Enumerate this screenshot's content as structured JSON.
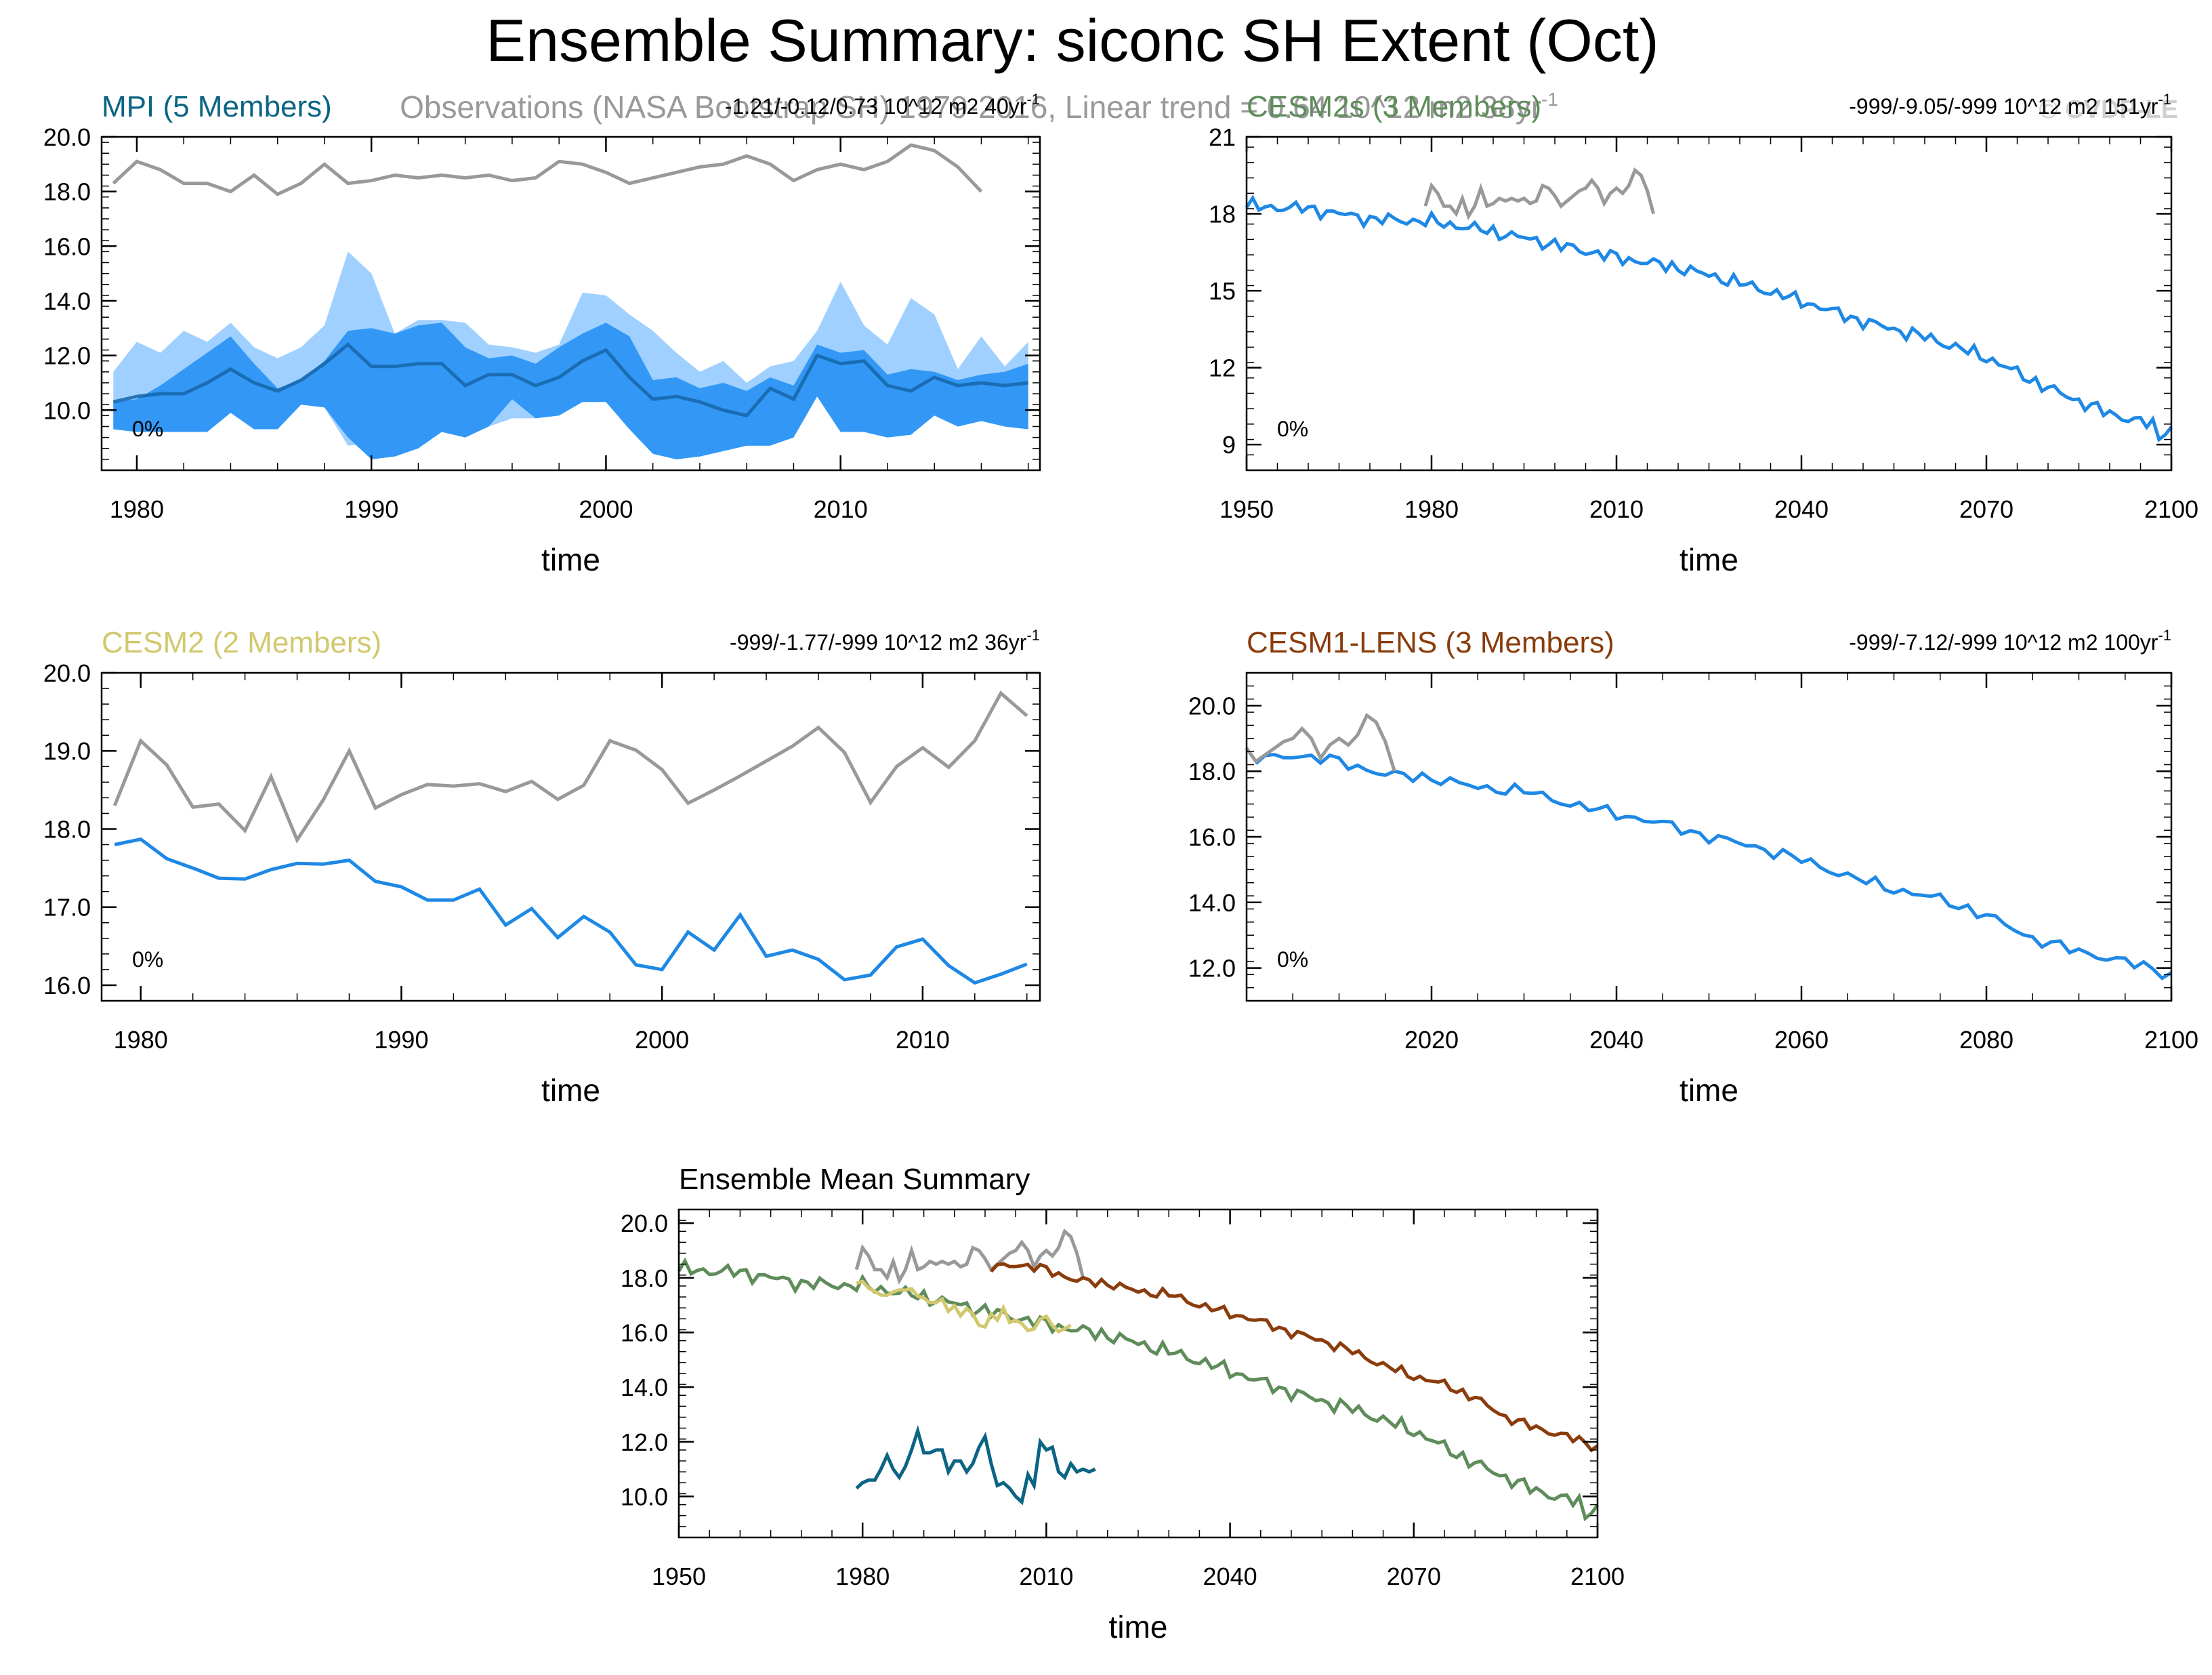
{
  "figure": {
    "title": "Ensemble Summary: siconc SH Extent (Oct)",
    "subtitle": "Observations (NASA Bootstrap SH) 1979-2016, Linear trend = 0.64 10^12 m2 38yr",
    "subtitle_sup": "-1",
    "watermark": "© CVDP-LE"
  },
  "colors": {
    "obs": "#999999",
    "mpi": "#0b6483",
    "cesm2s": "#5e8c5a",
    "cesm2": "#d2c86e",
    "lens": "#8a3c0c",
    "blue_line": "#1e88e5",
    "band_outer": "#9fd0ff",
    "band_inner": "#3398f5",
    "axis": "#000000"
  },
  "chart_data": [
    {
      "id": "mpi",
      "type": "area",
      "title": "MPI (5 Members)",
      "trend_label": "-1.21/-0.12/0.73 10^12 m2 40yr",
      "trend_sup": "-1",
      "pct_label": "0%",
      "xlabel": "time",
      "xlim": [
        1978.5,
        2018.5
      ],
      "ylim": [
        7.8,
        20.0
      ],
      "xticks": [
        1980,
        1990,
        2000,
        2010
      ],
      "yticks": [
        10.0,
        12.0,
        14.0,
        16.0,
        18.0,
        20.0
      ],
      "ytick_labels": [
        "10.0",
        "12.0",
        "14.0",
        "16.0",
        "18.0",
        "20.0"
      ],
      "years": [
        1979,
        1980,
        1981,
        1982,
        1983,
        1984,
        1985,
        1986,
        1987,
        1988,
        1989,
        1990,
        1991,
        1992,
        1993,
        1994,
        1995,
        1996,
        1997,
        1998,
        1999,
        2000,
        2001,
        2002,
        2003,
        2004,
        2005,
        2006,
        2007,
        2008,
        2009,
        2010,
        2011,
        2012,
        2013,
        2014,
        2015,
        2016,
        2017,
        2018
      ],
      "max": [
        11.4,
        12.5,
        12.1,
        12.9,
        12.5,
        13.2,
        12.3,
        11.9,
        12.3,
        13.1,
        15.8,
        15.0,
        12.8,
        13.3,
        13.3,
        13.2,
        12.4,
        12.3,
        12.1,
        12.4,
        14.3,
        14.2,
        13.5,
        12.9,
        12.1,
        11.4,
        11.8,
        11.0,
        11.6,
        11.8,
        12.9,
        14.7,
        13.1,
        12.4,
        14.1,
        13.5,
        11.5,
        12.7,
        11.6,
        12.5
      ],
      "upper": [
        10.3,
        10.4,
        10.9,
        11.5,
        12.1,
        12.7,
        11.7,
        10.8,
        11.1,
        11.8,
        12.9,
        13.0,
        12.8,
        13.1,
        13.2,
        12.3,
        11.9,
        12.0,
        11.7,
        12.3,
        12.8,
        13.2,
        12.7,
        11.1,
        11.2,
        10.8,
        11.0,
        10.7,
        11.2,
        10.9,
        12.4,
        12.1,
        12.2,
        11.3,
        11.5,
        11.4,
        11.1,
        11.3,
        11.4,
        11.7
      ],
      "mean": [
        10.3,
        10.5,
        10.6,
        10.6,
        11.0,
        11.5,
        11.0,
        10.7,
        11.1,
        11.7,
        12.4,
        11.6,
        11.6,
        11.7,
        11.7,
        10.9,
        11.3,
        11.3,
        10.9,
        11.2,
        11.8,
        12.2,
        11.2,
        10.4,
        10.5,
        10.3,
        10.0,
        9.8,
        10.8,
        10.4,
        12.0,
        11.7,
        11.8,
        10.9,
        10.7,
        11.2,
        10.9,
        11.0,
        10.9,
        11.0
      ],
      "lower": [
        9.3,
        9.2,
        9.2,
        9.2,
        9.2,
        9.9,
        9.3,
        9.3,
        10.2,
        10.1,
        9.0,
        8.2,
        8.3,
        8.6,
        9.2,
        9.0,
        9.4,
        10.4,
        9.7,
        9.8,
        10.3,
        10.3,
        9.3,
        8.4,
        8.2,
        8.3,
        8.5,
        8.7,
        8.7,
        9.0,
        10.5,
        9.2,
        9.2,
        9.0,
        9.1,
        9.8,
        9.4,
        9.6,
        9.4,
        9.3
      ],
      "min": [
        9.3,
        9.2,
        9.2,
        9.2,
        9.2,
        9.9,
        9.3,
        9.3,
        10.2,
        10.1,
        8.7,
        8.8,
        9.0,
        9.2,
        9.2,
        9.0,
        9.4,
        9.7,
        9.7,
        9.8,
        10.3,
        10.3,
        9.3,
        8.4,
        8.2,
        8.3,
        8.5,
        8.7,
        8.7,
        9.0,
        10.5,
        9.2,
        9.2,
        9.0,
        9.1,
        9.8,
        9.4,
        9.6,
        9.4,
        9.3
      ],
      "obs_years": [
        1979,
        1980,
        1981,
        1982,
        1983,
        1984,
        1985,
        1986,
        1987,
        1988,
        1989,
        1990,
        1991,
        1992,
        1993,
        1994,
        1995,
        1996,
        1997,
        1998,
        1999,
        2000,
        2001,
        2002,
        2003,
        2004,
        2005,
        2006,
        2007,
        2008,
        2009,
        2010,
        2011,
        2012,
        2013,
        2014,
        2015,
        2016
      ],
      "obs": [
        18.3,
        19.1,
        18.8,
        18.3,
        18.3,
        18.0,
        18.6,
        17.9,
        18.3,
        19.0,
        18.3,
        18.4,
        18.6,
        18.5,
        18.6,
        18.5,
        18.6,
        18.4,
        18.5,
        19.1,
        19.0,
        18.7,
        18.3,
        18.5,
        18.7,
        18.9,
        19.0,
        19.3,
        19.0,
        18.4,
        18.8,
        19.0,
        18.8,
        19.1,
        19.7,
        19.5,
        18.9,
        18.0
      ]
    },
    {
      "id": "cesm2s",
      "type": "line",
      "title": "CESM2s (3 Members)",
      "trend_label": "-999/-9.05/-999 10^12 m2 151yr",
      "trend_sup": "-1",
      "pct_label": "0%",
      "xlabel": "time",
      "xlim": [
        1950,
        2100
      ],
      "ylim": [
        8,
        21
      ],
      "xticks": [
        1950,
        1980,
        2010,
        2040,
        2070,
        2100
      ],
      "yticks": [
        9,
        12,
        15,
        18,
        21
      ],
      "ytick_labels": [
        "9",
        "12",
        "15",
        "18",
        "21"
      ],
      "series_start": 1950,
      "anchors": [
        [
          1950,
          18.3
        ],
        [
          1960,
          18.2
        ],
        [
          1970,
          17.8
        ],
        [
          1980,
          17.7
        ],
        [
          1990,
          17.3
        ],
        [
          2000,
          16.8
        ],
        [
          2010,
          16.3
        ],
        [
          2020,
          15.9
        ],
        [
          2030,
          15.3
        ],
        [
          2040,
          14.6
        ],
        [
          2050,
          13.8
        ],
        [
          2060,
          13.2
        ],
        [
          2070,
          12.4
        ],
        [
          2080,
          11.2
        ],
        [
          2090,
          10.2
        ],
        [
          2100,
          9.6
        ]
      ],
      "noise": 0.22,
      "dip": [
        2098,
        9.2
      ],
      "obs_years": [
        1979,
        1980,
        1981,
        1982,
        1983,
        1984,
        1985,
        1986,
        1987,
        1988,
        1989,
        1990,
        1991,
        1992,
        1993,
        1994,
        1995,
        1996,
        1997,
        1998,
        1999,
        2000,
        2001,
        2002,
        2003,
        2004,
        2005,
        2006,
        2007,
        2008,
        2009,
        2010,
        2011,
        2012,
        2013,
        2014,
        2015,
        2016
      ],
      "obs": [
        18.3,
        19.1,
        18.8,
        18.3,
        18.3,
        18.0,
        18.6,
        17.9,
        18.3,
        19.0,
        18.3,
        18.4,
        18.6,
        18.5,
        18.6,
        18.5,
        18.6,
        18.4,
        18.5,
        19.1,
        19.0,
        18.7,
        18.3,
        18.5,
        18.7,
        18.9,
        19.0,
        19.3,
        19.0,
        18.4,
        18.8,
        19.0,
        18.8,
        19.1,
        19.7,
        19.5,
        18.9,
        18.0
      ]
    },
    {
      "id": "cesm2",
      "type": "line",
      "title": "CESM2 (2 Members)",
      "trend_label": "-999/-1.77/-999 10^12 m2 36yr",
      "trend_sup": "-1",
      "pct_label": "0%",
      "xlabel": "time",
      "xlim": [
        1978.5,
        2014.5
      ],
      "ylim": [
        15.8,
        20.0
      ],
      "xticks": [
        1980,
        1990,
        2000,
        2010
      ],
      "yticks": [
        16.0,
        17.0,
        18.0,
        19.0,
        20.0
      ],
      "ytick_labels": [
        "16.0",
        "17.0",
        "18.0",
        "19.0",
        "20.0"
      ],
      "years": [
        1979,
        1980,
        1981,
        1982,
        1983,
        1984,
        1985,
        1986,
        1987,
        1988,
        1989,
        1990,
        1991,
        1992,
        1993,
        1994,
        1995,
        1996,
        1997,
        1998,
        1999,
        2000,
        2001,
        2002,
        2003,
        2004,
        2005,
        2006,
        2007,
        2008,
        2009,
        2010,
        2011,
        2012,
        2013,
        2014
      ],
      "values": [
        17.8,
        17.87,
        17.62,
        17.5,
        17.37,
        17.36,
        17.48,
        17.56,
        17.55,
        17.6,
        17.33,
        17.26,
        17.09,
        17.09,
        17.23,
        16.77,
        16.98,
        16.61,
        16.88,
        16.68,
        16.26,
        16.2,
        16.68,
        16.45,
        16.9,
        16.37,
        16.45,
        16.33,
        16.07,
        16.13,
        16.49,
        16.59,
        16.25,
        16.03,
        16.14,
        16.27
      ],
      "obs_years": [
        1979,
        1980,
        1981,
        1982,
        1983,
        1984,
        1985,
        1986,
        1987,
        1988,
        1989,
        1990,
        1991,
        1992,
        1993,
        1994,
        1995,
        1996,
        1997,
        1998,
        1999,
        2000,
        2001,
        2002,
        2003,
        2004,
        2005,
        2006,
        2007,
        2008,
        2009,
        2010,
        2011,
        2012,
        2013,
        2014
      ],
      "obs": [
        18.3,
        19.13,
        18.82,
        18.28,
        18.32,
        17.98,
        18.67,
        17.86,
        18.37,
        19.0,
        18.27,
        18.44,
        18.57,
        18.55,
        18.58,
        18.48,
        18.61,
        18.38,
        18.56,
        19.13,
        19.01,
        18.76,
        18.33,
        18.5,
        18.68,
        18.87,
        19.06,
        19.3,
        18.98,
        18.34,
        18.8,
        19.04,
        18.79,
        19.13,
        19.74,
        19.45
      ]
    },
    {
      "id": "lens",
      "type": "line",
      "title": "CESM1-LENS (3 Members)",
      "trend_label": "-999/-7.12/-999 10^12 m2 100yr",
      "trend_sup": "-1",
      "pct_label": "0%",
      "xlabel": "time",
      "xlim": [
        2000,
        2100
      ],
      "ylim": [
        11.0,
        21.0
      ],
      "xticks": [
        2020,
        2040,
        2060,
        2080,
        2100
      ],
      "yticks": [
        12.0,
        14.0,
        16.0,
        18.0,
        20.0
      ],
      "ytick_labels": [
        "12.0",
        "14.0",
        "16.0",
        "18.0",
        "20.0"
      ],
      "series_start": 2001,
      "anchors": [
        [
          2001,
          18.35
        ],
        [
          2005,
          18.5
        ],
        [
          2010,
          18.3
        ],
        [
          2015,
          17.9
        ],
        [
          2020,
          17.8
        ],
        [
          2025,
          17.5
        ],
        [
          2030,
          17.4
        ],
        [
          2035,
          17.0
        ],
        [
          2040,
          16.7
        ],
        [
          2045,
          16.4
        ],
        [
          2050,
          16.0
        ],
        [
          2055,
          15.7
        ],
        [
          2060,
          15.3
        ],
        [
          2065,
          14.8
        ],
        [
          2070,
          14.4
        ],
        [
          2075,
          14.1
        ],
        [
          2080,
          13.6
        ],
        [
          2085,
          12.9
        ],
        [
          2090,
          12.5
        ],
        [
          2095,
          12.2
        ],
        [
          2100,
          11.8
        ]
      ],
      "noise": 0.15,
      "obs_years": [
        2000,
        2001,
        2002,
        2003,
        2004,
        2005,
        2006,
        2007,
        2008,
        2009,
        2010,
        2011,
        2012,
        2013,
        2014,
        2015,
        2016
      ],
      "obs": [
        18.7,
        18.3,
        18.5,
        18.7,
        18.9,
        19.0,
        19.3,
        19.0,
        18.4,
        18.8,
        19.0,
        18.8,
        19.1,
        19.7,
        19.5,
        18.9,
        18.0
      ]
    },
    {
      "id": "summary",
      "type": "line",
      "title": "Ensemble Mean Summary",
      "xlabel": "time",
      "xlim": [
        1950,
        2100
      ],
      "ylim": [
        8.5,
        20.5
      ],
      "xticks": [
        1950,
        1980,
        2010,
        2040,
        2070,
        2100
      ],
      "yticks": [
        10.0,
        12.0,
        14.0,
        16.0,
        18.0,
        20.0
      ],
      "ytick_labels": [
        "10.0",
        "12.0",
        "14.0",
        "16.0",
        "18.0",
        "20.0"
      ],
      "series": [
        {
          "name": "Observations",
          "color_key": "obs",
          "ref": "obs"
        },
        {
          "name": "CESM2s",
          "color_key": "cesm2s",
          "ref": "cesm2s"
        },
        {
          "name": "CESM1-LENS",
          "color_key": "lens",
          "ref": "lens"
        },
        {
          "name": "CESM2",
          "color_key": "cesm2",
          "ref": "cesm2"
        },
        {
          "name": "MPI",
          "color_key": "mpi",
          "ref": "mpi"
        }
      ]
    }
  ]
}
